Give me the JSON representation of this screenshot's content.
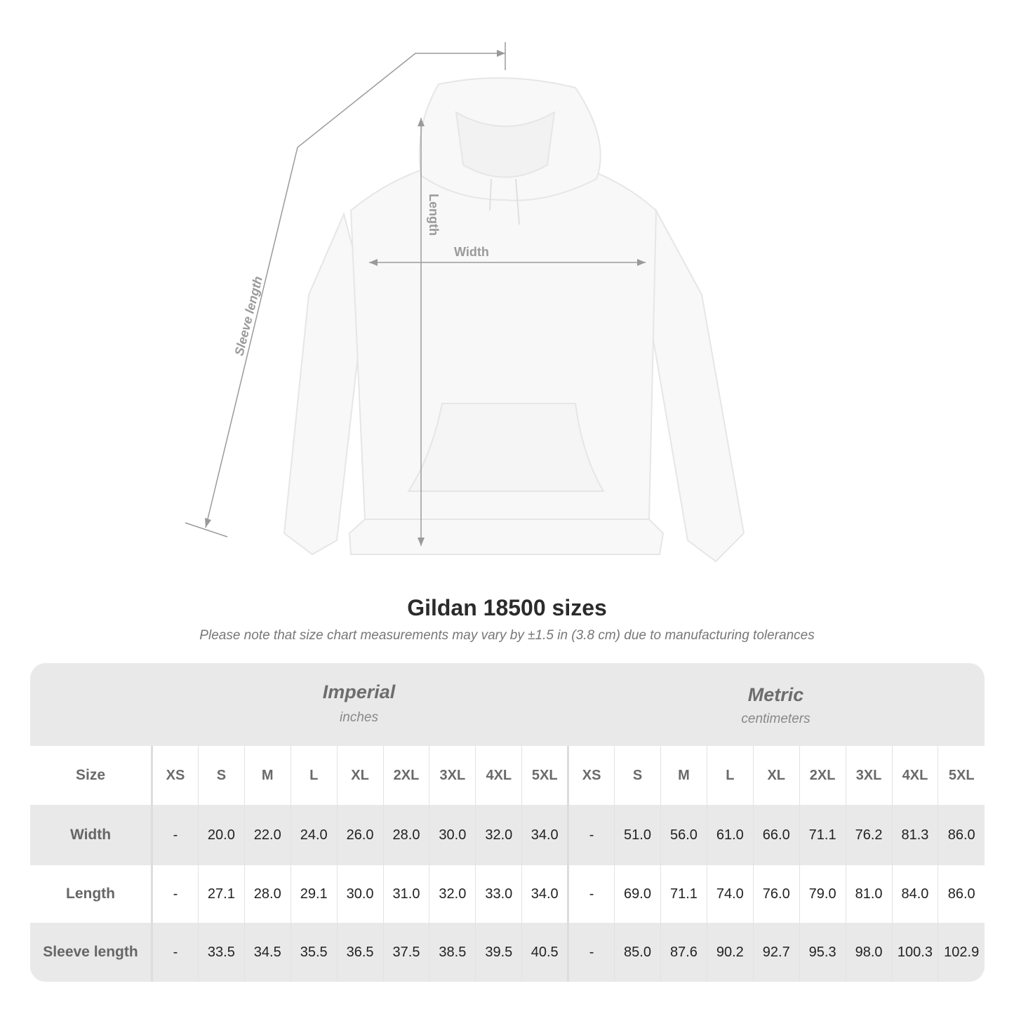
{
  "diagram": {
    "labels": {
      "length": "Length",
      "width": "Width",
      "sleeve": "Sleeve length"
    },
    "garment_color": "#f7f7f7",
    "line_color": "#9a9a9a"
  },
  "title": "Gildan 18500 sizes",
  "note": "Please note that size chart measurements may vary by ±1.5 in (3.8 cm) due to manufacturing tolerances",
  "table": {
    "imperial": {
      "name": "Imperial",
      "unit": "inches"
    },
    "metric": {
      "name": "Metric",
      "unit": "centimeters"
    },
    "size_label": "Size",
    "sizes": [
      "XS",
      "S",
      "M",
      "L",
      "XL",
      "2XL",
      "3XL",
      "4XL",
      "5XL"
    ],
    "rows": [
      {
        "label": "Width",
        "imperial": [
          "-",
          "20.0",
          "22.0",
          "24.0",
          "26.0",
          "28.0",
          "30.0",
          "32.0",
          "34.0"
        ],
        "metric": [
          "-",
          "51.0",
          "56.0",
          "61.0",
          "66.0",
          "71.1",
          "76.2",
          "81.3",
          "86.0"
        ]
      },
      {
        "label": "Length",
        "imperial": [
          "-",
          "27.1",
          "28.0",
          "29.1",
          "30.0",
          "31.0",
          "32.0",
          "33.0",
          "34.0"
        ],
        "metric": [
          "-",
          "69.0",
          "71.1",
          "74.0",
          "76.0",
          "79.0",
          "81.0",
          "84.0",
          "86.0"
        ]
      },
      {
        "label": "Sleeve length",
        "imperial": [
          "-",
          "33.5",
          "34.5",
          "35.5",
          "36.5",
          "37.5",
          "38.5",
          "39.5",
          "40.5"
        ],
        "metric": [
          "-",
          "85.0",
          "87.6",
          "90.2",
          "92.7",
          "95.3",
          "98.0",
          "100.3",
          "102.9"
        ]
      }
    ]
  }
}
